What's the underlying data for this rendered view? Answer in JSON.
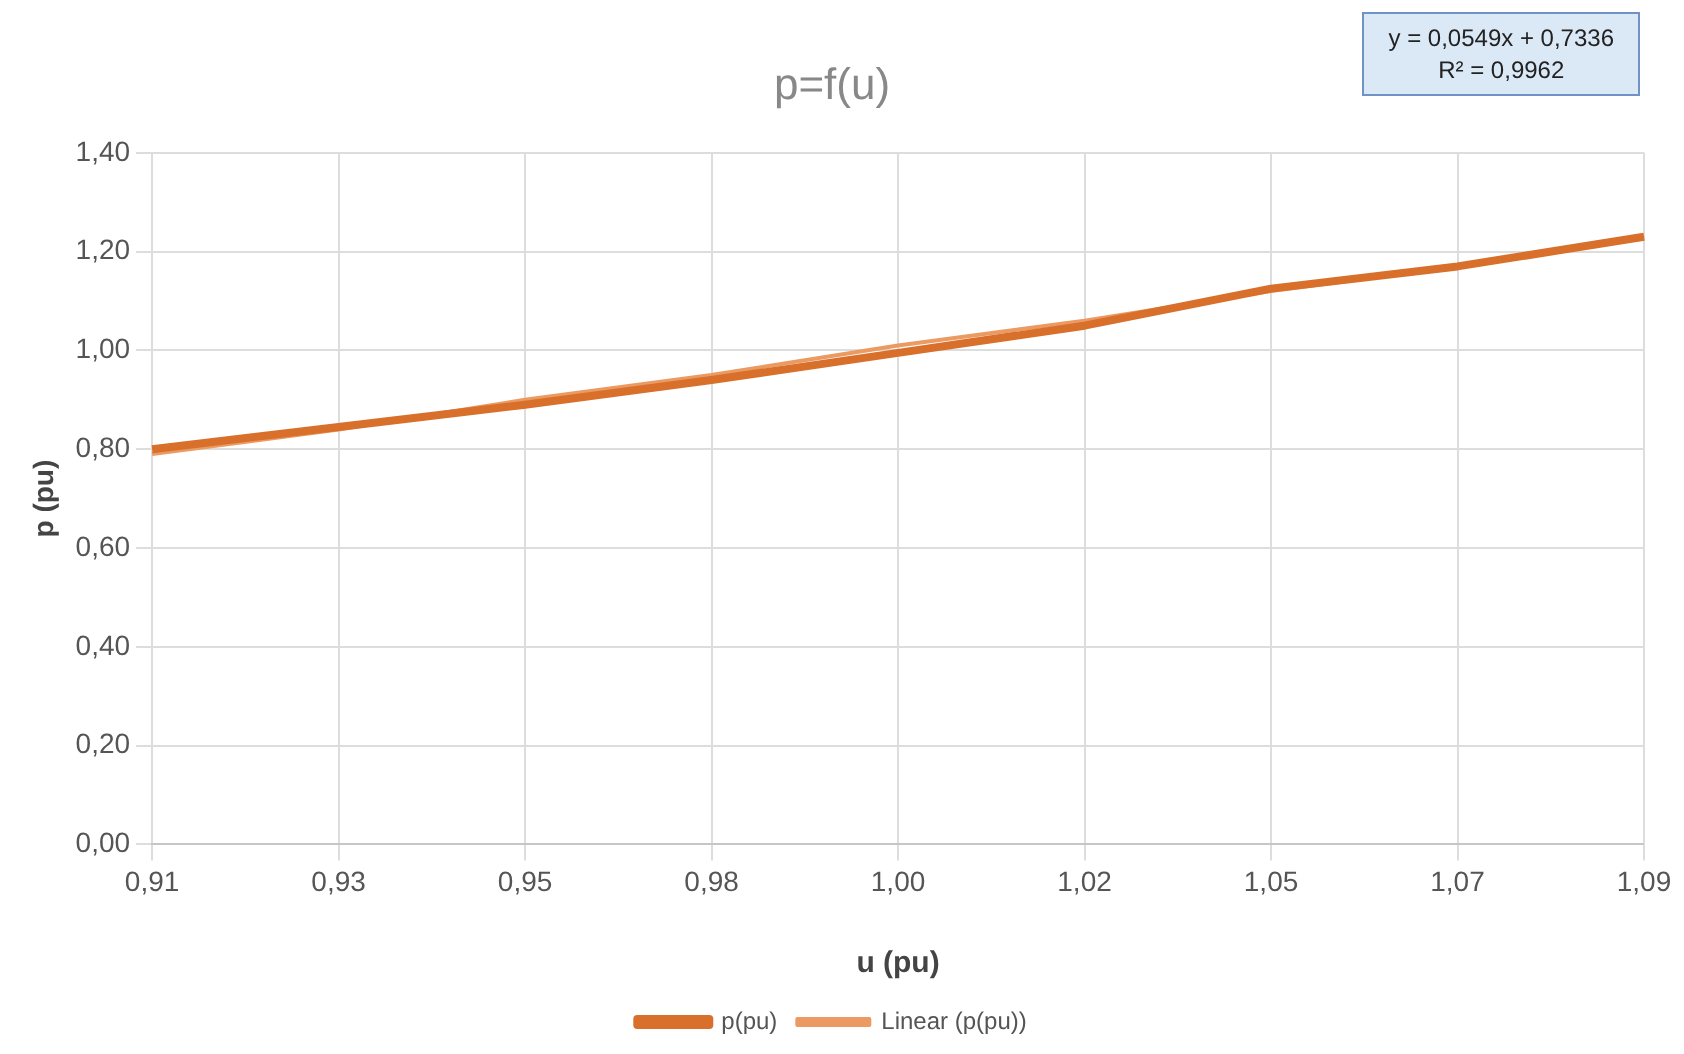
{
  "chart_data": {
    "type": "line",
    "title": "p=f(u)",
    "xlabel": "u (pu)",
    "ylabel": "p (pu)",
    "categories": [
      "0,91",
      "0,93",
      "0,95",
      "0,98",
      "1,00",
      "1,02",
      "1,05",
      "1,07",
      "1,09"
    ],
    "series": [
      {
        "name": "p(pu)",
        "color": "#d86f2a",
        "values": [
          0.8,
          0.845,
          0.89,
          0.94,
          0.995,
          1.05,
          1.125,
          1.17,
          1.23
        ]
      },
      {
        "name": "Linear (p(pu))",
        "color": "#eb9a62",
        "values": [
          0.79,
          0.84,
          0.9,
          0.95,
          1.01,
          1.06,
          1.12,
          1.17,
          1.23
        ]
      }
    ],
    "ylim": [
      0,
      1.4
    ],
    "yticks": [
      {
        "value": 0,
        "label": "0,00"
      },
      {
        "value": 0.2,
        "label": "0,20"
      },
      {
        "value": 0.4,
        "label": "0,40"
      },
      {
        "value": 0.6,
        "label": "0,60"
      },
      {
        "value": 0.8,
        "label": "0,80"
      },
      {
        "value": 1.0,
        "label": "1,00"
      },
      {
        "value": 1.2,
        "label": "1,20"
      },
      {
        "value": 1.4,
        "label": "1,40"
      }
    ],
    "annotations": [
      "y = 0,0549x + 0,7336",
      "R² = 0,9962"
    ],
    "grid": true,
    "legend": "bottom",
    "marker": "none",
    "line_style": "solid"
  }
}
